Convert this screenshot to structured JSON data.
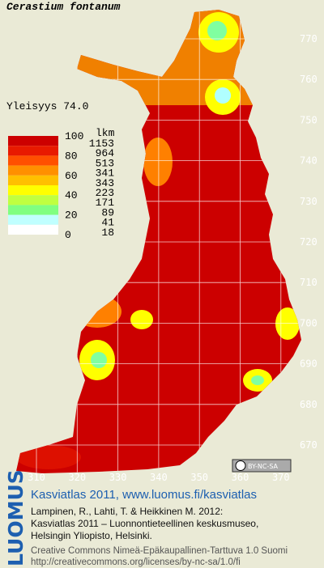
{
  "title": "Cerastium fontanum",
  "frequency": "Yleisyys 74.0",
  "legend": {
    "scale": [
      "100",
      "80",
      "60",
      "40",
      "20",
      "0"
    ],
    "count_header": "lkm",
    "counts": [
      "1153",
      "964",
      "513",
      "341",
      "343",
      "223",
      "171",
      "89",
      "41",
      "18"
    ]
  },
  "grid": {
    "y_labels": [
      "770",
      "760",
      "750",
      "740",
      "730",
      "720",
      "710",
      "700",
      "690",
      "680",
      "670"
    ],
    "x_labels": [
      "310",
      "320",
      "330",
      "340",
      "350",
      "360",
      "370"
    ]
  },
  "license_badge": "BY-NC-SA",
  "footer": {
    "brand": "LUOMUS",
    "link": "Kasviatlas 2011, www.luomus.fi/kasviatlas",
    "citation": [
      "Lampinen, R., Lahti, T. & Heikkinen M. 2012:",
      "Kasviatlas 2011 – Luonnontieteellinen keskusmuseo,",
      "Helsingin Yliopisto, Helsinki."
    ],
    "license": [
      "Creative Commons Nimeä-Epäkaupallinen-Tarttuva 1.0 Suomi",
      "http://creativecommons.org/licenses/by-nc-sa/1.0/fi"
    ]
  }
}
